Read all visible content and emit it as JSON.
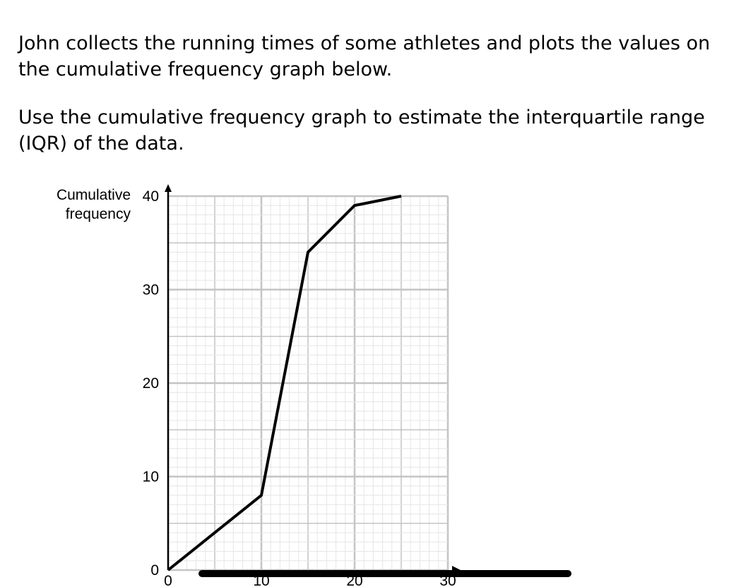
{
  "question": {
    "line1": "John collects the running times of some athletes and plots the values on the cumulative frequency graph below.",
    "line2": "Use the cumulative frequency graph to estimate the interquartile range (IQR) of the data."
  },
  "chart_data": {
    "type": "line",
    "title": "",
    "xlabel": "",
    "ylabel": "Cumulative frequency",
    "ylabel_lines": [
      "Cumulative",
      "frequency"
    ],
    "xlim": [
      0,
      30
    ],
    "ylim": [
      0,
      40
    ],
    "x_ticks": [
      "0",
      "10",
      "20",
      "30"
    ],
    "y_ticks": [
      "0",
      "10",
      "20",
      "30",
      "40"
    ],
    "grid": true,
    "series": [
      {
        "x": [
          0,
          10,
          15,
          20,
          25
        ],
        "y": [
          0,
          8,
          34,
          39,
          40
        ]
      }
    ],
    "colors": {
      "line": "#000000",
      "major_grid": "#c4c4c4",
      "minor_grid": "#e6e6e6",
      "obscuring_stroke": "#000000"
    }
  }
}
